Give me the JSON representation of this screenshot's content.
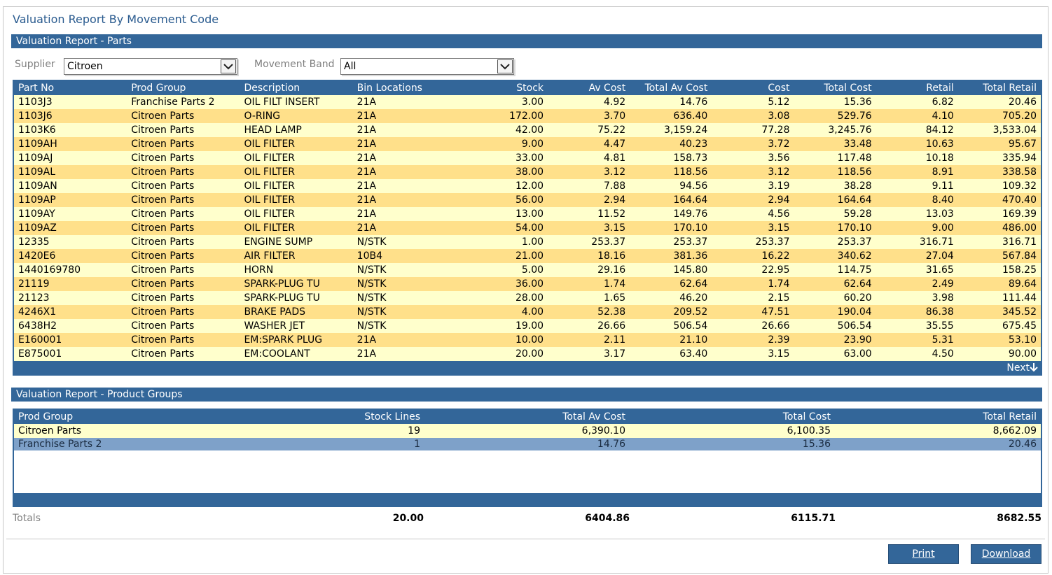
{
  "page_title": "Valuation Report By Movement Code",
  "parts_section": {
    "title": "Valuation Report - Parts",
    "filters": {
      "supplier_label": "Supplier",
      "supplier_value": "Citroen",
      "movement_band_label": "Movement Band",
      "movement_band_value": "All"
    },
    "columns": [
      "Part No",
      "Prod Group",
      "Description",
      "Bin Locations",
      "Stock",
      "Av Cost",
      "Total Av Cost",
      "Cost",
      "Total Cost",
      "Retail",
      "Total Retail"
    ],
    "rows": [
      [
        "1103J3",
        "Franchise Parts 2",
        "OIL FILT INSERT",
        "21A",
        "3.00",
        "4.92",
        "14.76",
        "5.12",
        "15.36",
        "6.82",
        "20.46"
      ],
      [
        "1103J6",
        "Citroen Parts",
        "O-RING",
        "21A",
        "172.00",
        "3.70",
        "636.40",
        "3.08",
        "529.76",
        "4.10",
        "705.20"
      ],
      [
        "1103K6",
        "Citroen Parts",
        "HEAD LAMP",
        "21A",
        "42.00",
        "75.22",
        "3,159.24",
        "77.28",
        "3,245.76",
        "84.12",
        "3,533.04"
      ],
      [
        "1109AH",
        "Citroen Parts",
        "OIL FILTER",
        "21A",
        "9.00",
        "4.47",
        "40.23",
        "3.72",
        "33.48",
        "10.63",
        "95.67"
      ],
      [
        "1109AJ",
        "Citroen Parts",
        "OIL FILTER",
        "21A",
        "33.00",
        "4.81",
        "158.73",
        "3.56",
        "117.48",
        "10.18",
        "335.94"
      ],
      [
        "1109AL",
        "Citroen Parts",
        "OIL FILTER",
        "21A",
        "38.00",
        "3.12",
        "118.56",
        "3.12",
        "118.56",
        "8.91",
        "338.58"
      ],
      [
        "1109AN",
        "Citroen Parts",
        "OIL FILTER",
        "21A",
        "12.00",
        "7.88",
        "94.56",
        "3.19",
        "38.28",
        "9.11",
        "109.32"
      ],
      [
        "1109AP",
        "Citroen Parts",
        "OIL FILTER",
        "21A",
        "56.00",
        "2.94",
        "164.64",
        "2.94",
        "164.64",
        "8.40",
        "470.40"
      ],
      [
        "1109AY",
        "Citroen Parts",
        "OIL FILTER",
        "21A",
        "13.00",
        "11.52",
        "149.76",
        "4.56",
        "59.28",
        "13.03",
        "169.39"
      ],
      [
        "1109AZ",
        "Citroen Parts",
        "OIL FILTER",
        "21A",
        "54.00",
        "3.15",
        "170.10",
        "3.15",
        "170.10",
        "9.00",
        "486.00"
      ],
      [
        "12335",
        "Citroen Parts",
        "ENGINE SUMP",
        "N/STK",
        "1.00",
        "253.37",
        "253.37",
        "253.37",
        "253.37",
        "316.71",
        "316.71"
      ],
      [
        "1420E6",
        "Citroen Parts",
        "AIR FILTER",
        "10B4",
        "21.00",
        "18.16",
        "381.36",
        "16.22",
        "340.62",
        "27.04",
        "567.84"
      ],
      [
        "1440169780",
        "Citroen Parts",
        "HORN",
        "N/STK",
        "5.00",
        "29.16",
        "145.80",
        "22.95",
        "114.75",
        "31.65",
        "158.25"
      ],
      [
        "21119",
        "Citroen Parts",
        "SPARK-PLUG TU",
        "N/STK",
        "36.00",
        "1.74",
        "62.64",
        "1.74",
        "62.64",
        "2.49",
        "89.64"
      ],
      [
        "21123",
        "Citroen Parts",
        "SPARK-PLUG TU",
        "N/STK",
        "28.00",
        "1.65",
        "46.20",
        "2.15",
        "60.20",
        "3.98",
        "111.44"
      ],
      [
        "4246X1",
        "Citroen Parts",
        "BRAKE PADS",
        "N/STK",
        "4.00",
        "52.38",
        "209.52",
        "47.51",
        "190.04",
        "86.38",
        "345.52"
      ],
      [
        "6438H2",
        "Citroen Parts",
        "WASHER JET",
        "N/STK",
        "19.00",
        "26.66",
        "506.54",
        "26.66",
        "506.54",
        "35.55",
        "675.45"
      ],
      [
        "E160001",
        "Citroen Parts",
        "EM:SPARK PLUG",
        "21A",
        "10.00",
        "2.11",
        "21.10",
        "2.39",
        "23.90",
        "5.31",
        "53.10"
      ],
      [
        "E875001",
        "Citroen Parts",
        "EM:COOLANT",
        "21A",
        "20.00",
        "3.17",
        "63.40",
        "3.15",
        "63.00",
        "4.50",
        "90.00"
      ]
    ],
    "next_label": "Next",
    "next_icon": "arrow-down-icon"
  },
  "groups_section": {
    "title": "Valuation Report - Product Groups",
    "columns": [
      "Prod Group",
      "Stock Lines",
      "Total Av Cost",
      "Total Cost",
      "Total Retail"
    ],
    "rows": [
      [
        "Citroen Parts",
        "19",
        "6,390.10",
        "6,100.35",
        "8,662.09"
      ],
      [
        "Franchise Parts 2",
        "1",
        "14.76",
        "15.36",
        "20.46"
      ]
    ]
  },
  "totals": {
    "label": "Totals",
    "stock_lines": "20.00",
    "total_av_cost": "6404.86",
    "total_cost": "6115.71",
    "total_retail": "8682.55"
  },
  "buttons": {
    "print": "Print",
    "download": "Download"
  },
  "colors": {
    "header_blue": "#336699",
    "row_light": "#ffffcc",
    "row_dark": "#ffe08a",
    "row_selected": "#7ea1c9"
  }
}
